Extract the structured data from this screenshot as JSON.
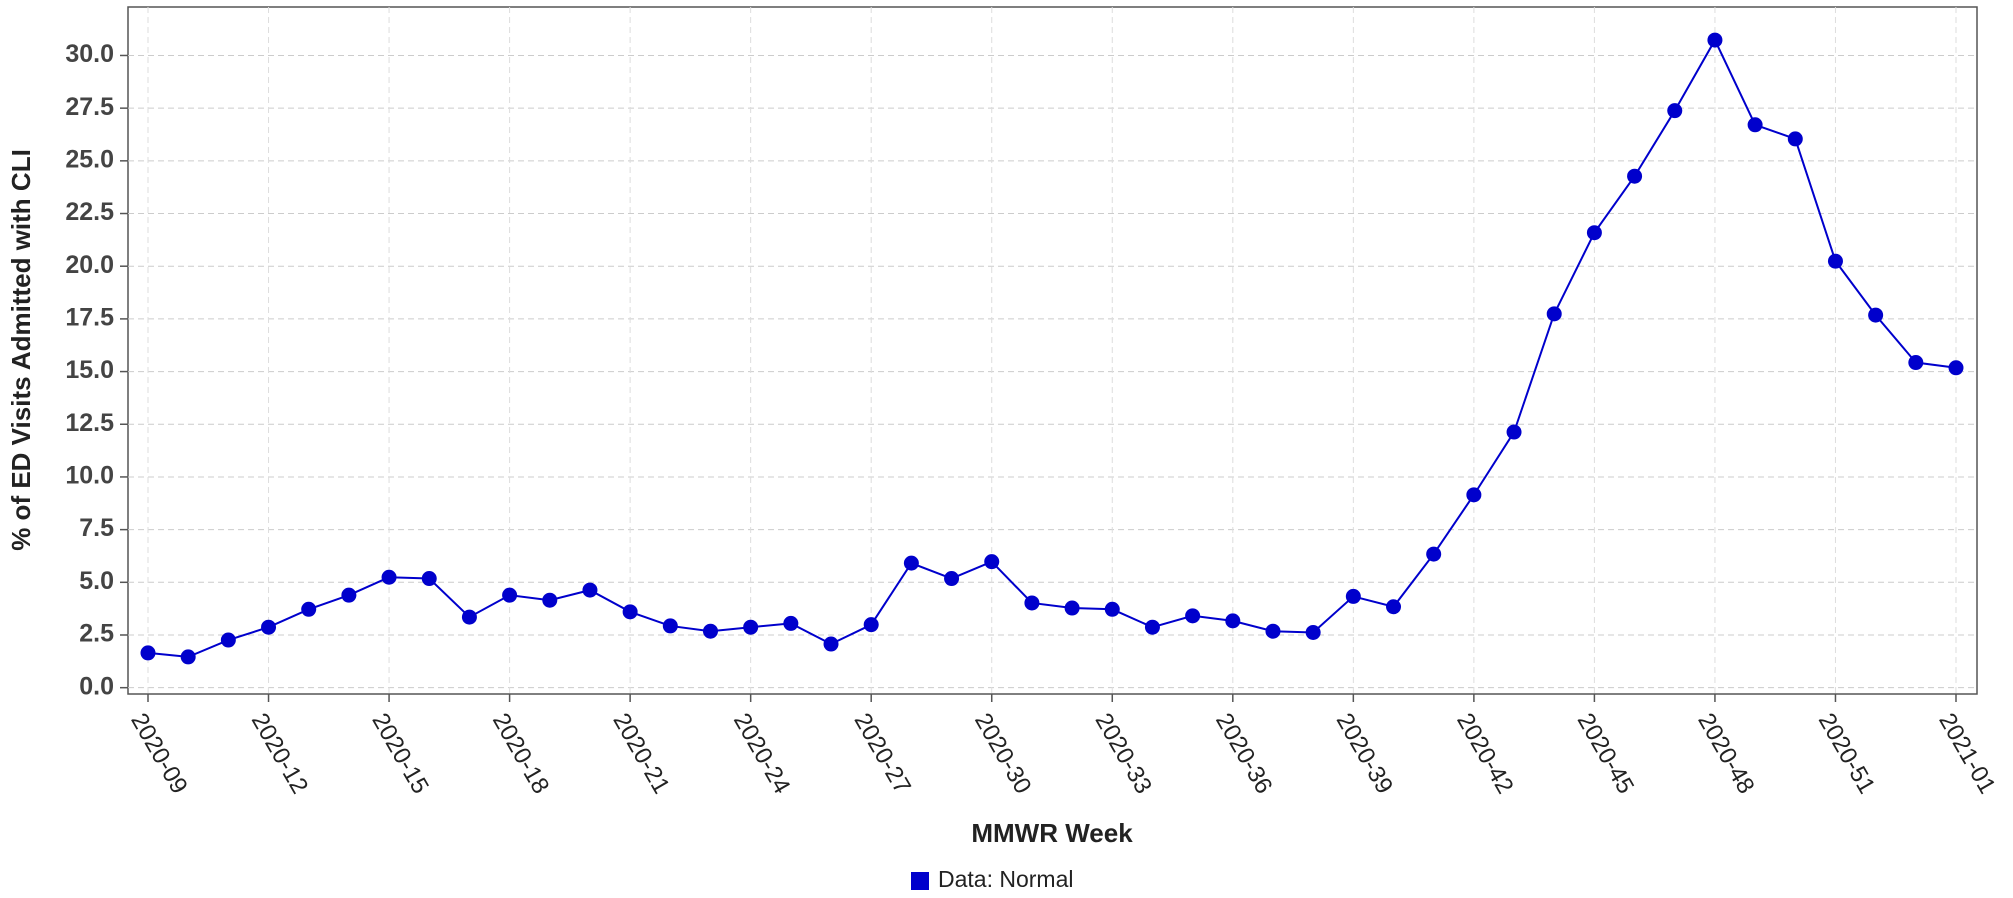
{
  "chart_data": {
    "type": "line",
    "x_label": "MMWR Week",
    "y_label": "% of ED Visits Admitted with CLI",
    "categories": [
      "2020-09",
      null,
      null,
      "2020-12",
      null,
      null,
      "2020-15",
      null,
      null,
      "2020-18",
      null,
      null,
      "2020-21",
      null,
      null,
      "2020-24",
      null,
      null,
      "2020-27",
      null,
      null,
      "2020-30",
      null,
      null,
      "2020-33",
      null,
      null,
      "2020-36",
      null,
      null,
      "2020-39",
      null,
      null,
      "2020-42",
      null,
      null,
      "2020-45",
      null,
      null,
      "2020-48",
      null,
      null,
      "2020-51",
      null,
      null,
      "2021-01"
    ],
    "series": [
      {
        "name": "Data: Normal",
        "color": "#0000cc",
        "values": [
          1.65,
          1.46,
          2.26,
          2.87,
          3.72,
          4.39,
          5.24,
          5.18,
          3.35,
          4.39,
          4.15,
          4.63,
          3.6,
          2.93,
          2.68,
          2.87,
          3.05,
          2.07,
          2.99,
          5.91,
          5.18,
          5.98,
          4.02,
          3.78,
          3.72,
          2.87,
          3.41,
          3.17,
          2.68,
          2.62,
          4.33,
          3.84,
          6.34,
          9.15,
          12.13,
          17.74,
          21.59,
          24.27,
          27.38,
          30.73,
          26.71,
          26.04,
          20.24,
          17.68,
          15.43,
          15.18
        ]
      }
    ],
    "ylim": [
      -0.3,
      32.3
    ],
    "yticks": [
      {
        "value": 0,
        "label": "0.0"
      },
      2.5,
      {
        "value": 5,
        "label": "5.0"
      },
      7.5,
      {
        "value": 10,
        "label": "10.0"
      },
      12.5,
      {
        "value": 15,
        "label": "15.0"
      },
      17.5,
      {
        "value": 20,
        "label": "20.0"
      },
      22.5,
      {
        "value": 25,
        "label": "25.0"
      },
      27.5,
      {
        "value": 30,
        "label": "30.0"
      }
    ],
    "grid": true
  }
}
